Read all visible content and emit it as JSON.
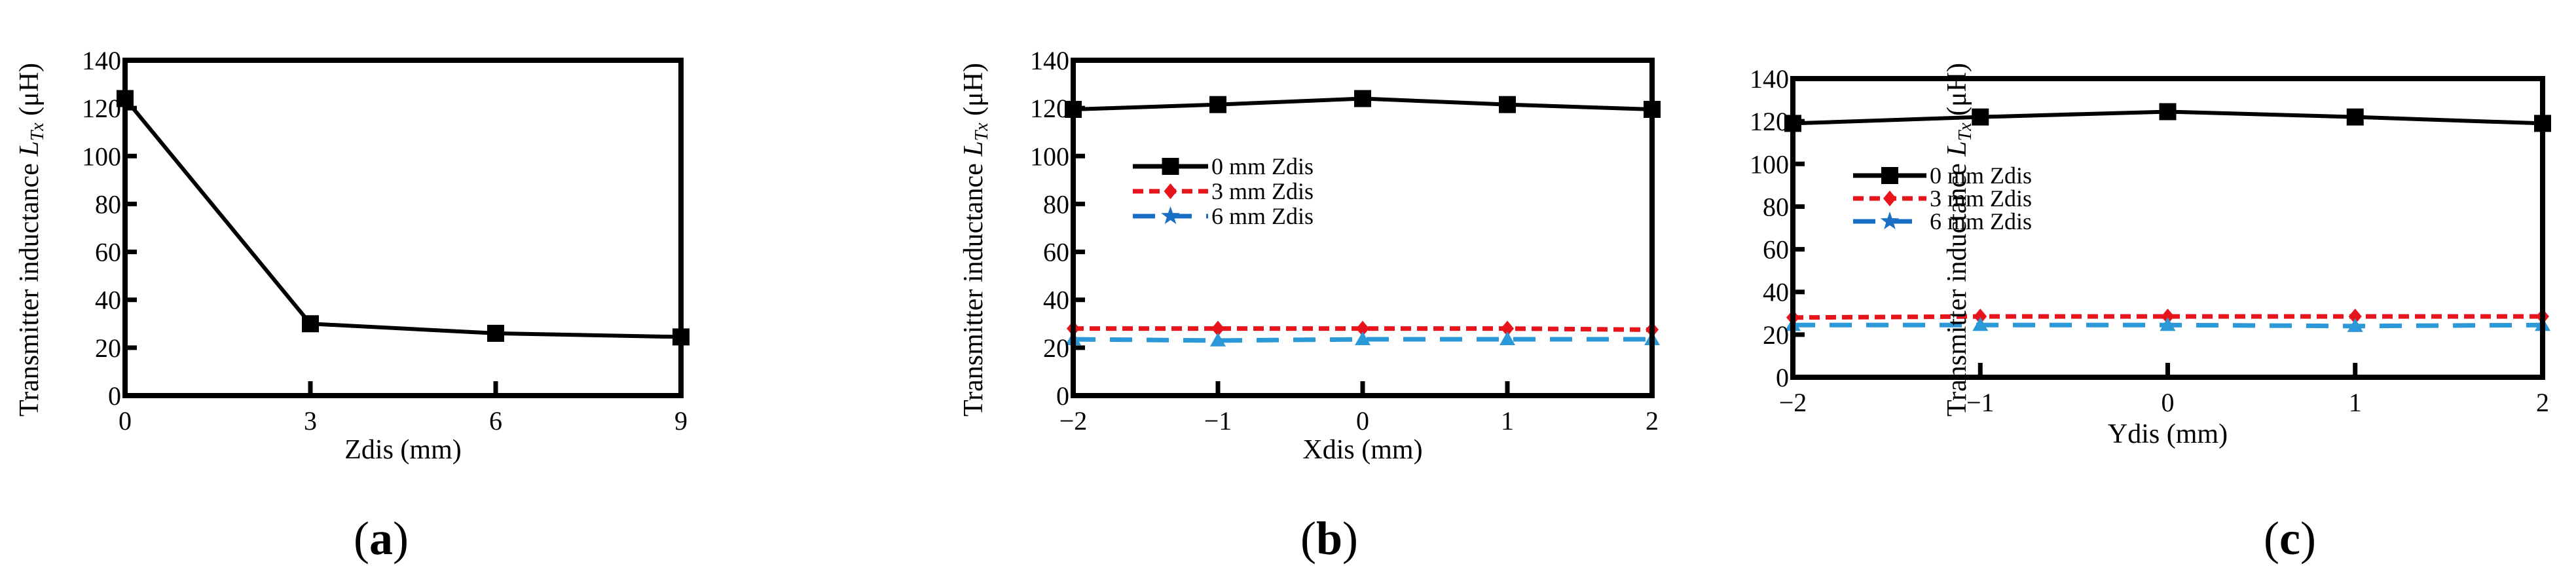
{
  "chart_data": [
    {
      "type": "line",
      "panel_label": "a",
      "xlabel": "Zdis (mm)",
      "ylabel_prefix": "Transmitter inductance ",
      "ylabel_symbol": "L",
      "ylabel_subscript": "Tx",
      "ylabel_unit": " (μH)",
      "x": [
        0,
        3,
        6,
        9
      ],
      "xticks": [
        "0",
        "3",
        "6",
        "9"
      ],
      "xlim": [
        0,
        9
      ],
      "ylim": [
        0,
        140
      ],
      "yticks": [
        "0",
        "20",
        "40",
        "60",
        "80",
        "100",
        "120",
        "140"
      ],
      "grid": false,
      "legend": null,
      "series": [
        {
          "name": "",
          "color": "#000000",
          "dash": "solid",
          "marker": "square",
          "values": [
            124,
            30,
            26,
            24.5
          ]
        }
      ]
    },
    {
      "type": "line",
      "panel_label": "b",
      "xlabel": "Xdis (mm)",
      "ylabel_prefix": "Transmitter inductance ",
      "ylabel_symbol": "L",
      "ylabel_subscript": "Tx",
      "ylabel_unit": " (μH)",
      "x": [
        -2,
        -1,
        0,
        1,
        2
      ],
      "xticks": [
        "−2",
        "−1",
        "0",
        "1",
        "2"
      ],
      "xlim": [
        -2,
        2
      ],
      "ylim": [
        0,
        140
      ],
      "yticks": [
        "0",
        "20",
        "40",
        "60",
        "80",
        "100",
        "120",
        "140"
      ],
      "grid": false,
      "legend": "upper-left",
      "series": [
        {
          "name": "0 mm Zdis",
          "color": "#000000",
          "dash": "solid",
          "marker": "square",
          "values": [
            119.5,
            121.5,
            124,
            121.5,
            119.5
          ]
        },
        {
          "name": "3 mm Zdis",
          "color": "#e8141b",
          "dash": "short",
          "marker": "diamond",
          "values": [
            28,
            28,
            28,
            28,
            27.5
          ]
        },
        {
          "name": "6 mm Zdis",
          "color": "#2b98d8",
          "dash": "long",
          "marker": "triangle",
          "values": [
            23.5,
            23,
            23.5,
            23.5,
            23.5
          ]
        }
      ]
    },
    {
      "type": "line",
      "panel_label": "c",
      "xlabel": "Ydis (mm)",
      "ylabel_prefix": "Transmitter inductance ",
      "ylabel_symbol": "L",
      "ylabel_subscript": "Tx",
      "ylabel_unit": " (μH)",
      "x": [
        -2,
        -1,
        0,
        1,
        2
      ],
      "xticks": [
        "−2",
        "−1",
        "0",
        "1",
        "2"
      ],
      "xlim": [
        -2,
        2
      ],
      "ylim": [
        0,
        140
      ],
      "yticks": [
        "0",
        "20",
        "40",
        "60",
        "80",
        "100",
        "120",
        "140"
      ],
      "grid": false,
      "legend": "upper-left",
      "series": [
        {
          "name": "0 mm Zdis",
          "color": "#000000",
          "dash": "solid",
          "marker": "square",
          "values": [
            119,
            122,
            124.5,
            122,
            119
          ]
        },
        {
          "name": "3 mm Zdis",
          "color": "#e8141b",
          "dash": "short",
          "marker": "diamond",
          "values": [
            28,
            28.5,
            28.5,
            28.5,
            28.5
          ]
        },
        {
          "name": "6 mm Zdis",
          "color": "#2b98d8",
          "dash": "long",
          "marker": "triangle",
          "values": [
            24.5,
            24.5,
            24.5,
            24,
            24.5
          ]
        }
      ]
    }
  ]
}
